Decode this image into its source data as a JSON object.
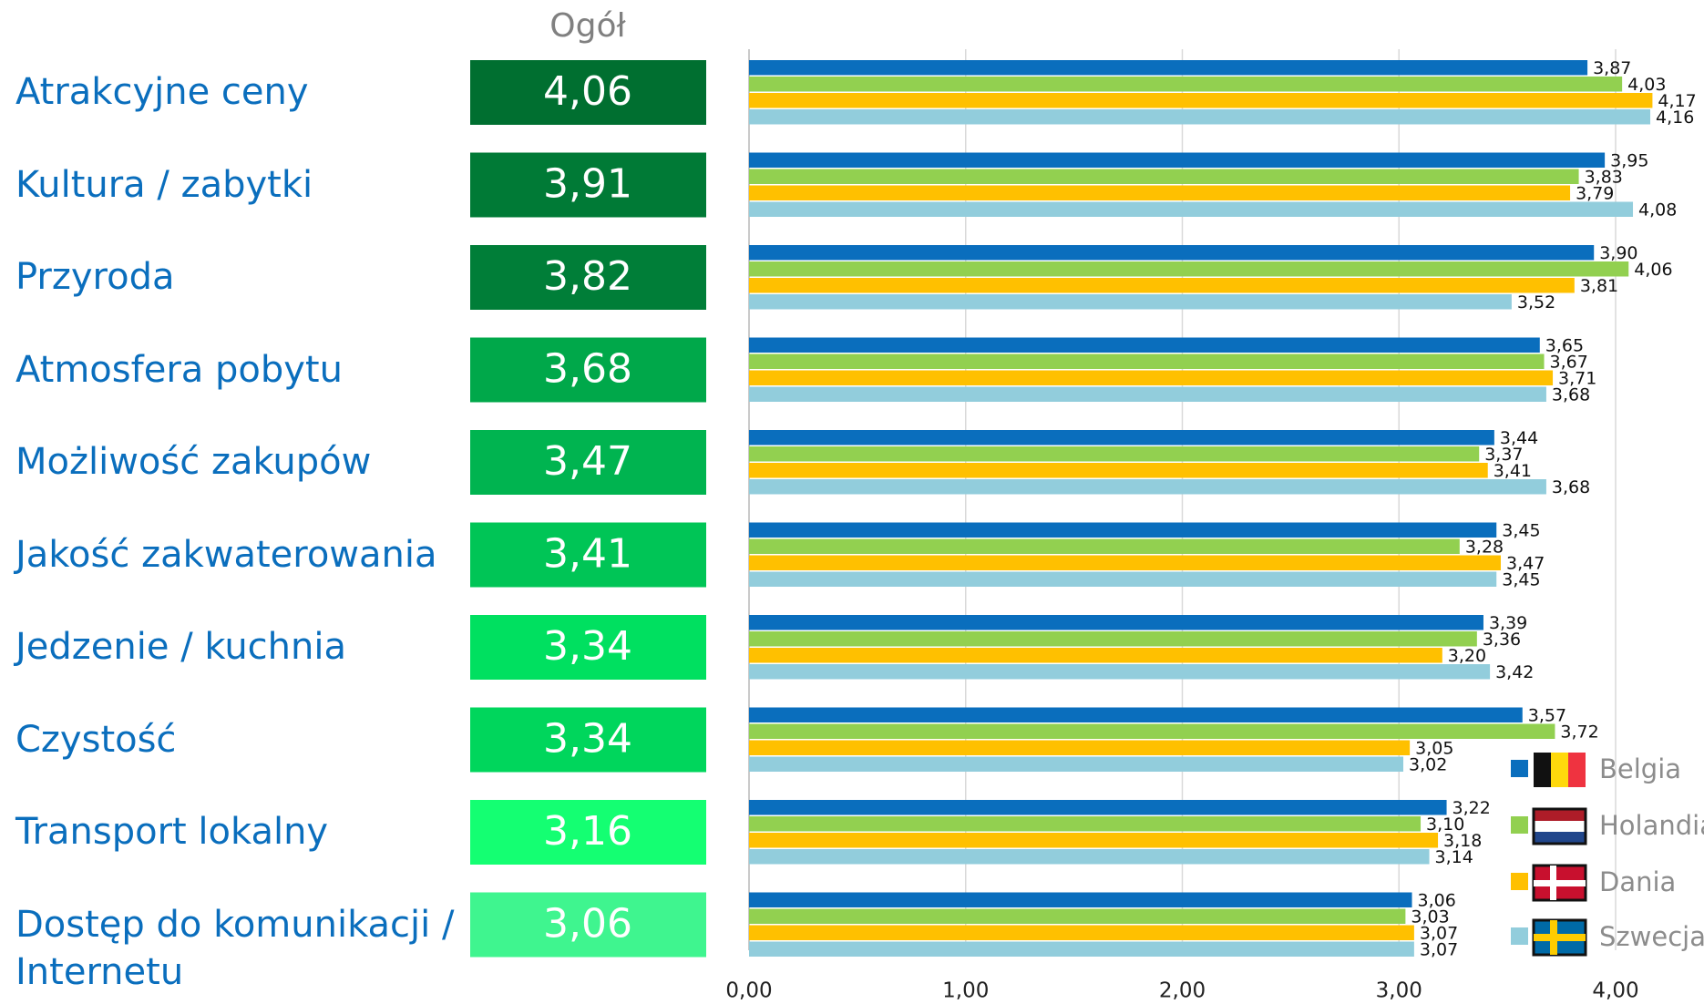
{
  "chart_data": {
    "type": "bar",
    "orientation": "horizontal",
    "summary_header": "Ogół",
    "categories": [
      "Atrakcyjne ceny",
      "Kultura / zabytki",
      "Przyroda",
      "Atmosfera pobytu",
      "Możliwość zakupów",
      "Jakość zakwaterowania",
      "Jedzenie / kuchnia",
      "Czystość",
      "Transport lokalny",
      "Dostęp do komunikacji / Internetu"
    ],
    "summary_values": [
      4.06,
      3.91,
      3.82,
      3.68,
      3.47,
      3.41,
      3.34,
      3.34,
      3.16,
      3.06
    ],
    "summary_value_labels": [
      "4,06",
      "3,91",
      "3,82",
      "3,68",
      "3,47",
      "3,41",
      "3,34",
      "3,34",
      "3,16",
      "3,06"
    ],
    "summary_colors": [
      "#006f30",
      "#007a36",
      "#007e38",
      "#00a84a",
      "#00b450",
      "#00c556",
      "#00e060",
      "#00d65c",
      "#14ff72",
      "#3ff58f"
    ],
    "series": [
      {
        "name": "Belgia",
        "color": "#0a6ebd",
        "values": [
          3.87,
          3.95,
          3.9,
          3.65,
          3.44,
          3.45,
          3.39,
          3.57,
          3.22,
          3.06
        ],
        "value_labels": [
          "3,87",
          "3,95",
          "3,90",
          "3,65",
          "3,44",
          "3,45",
          "3,39",
          "3,57",
          "3,22",
          "3,06"
        ]
      },
      {
        "name": "Holandia",
        "color": "#92d050",
        "values": [
          4.03,
          3.83,
          4.06,
          3.67,
          3.37,
          3.28,
          3.36,
          3.72,
          3.1,
          3.03
        ],
        "value_labels": [
          "4,03",
          "3,83",
          "4,06",
          "3,67",
          "3,37",
          "3,28",
          "3,36",
          "3,72",
          "3,10",
          "3,03"
        ]
      },
      {
        "name": "Dania",
        "color": "#ffc000",
        "values": [
          4.17,
          3.79,
          3.81,
          3.71,
          3.41,
          3.47,
          3.2,
          3.05,
          3.18,
          3.07
        ],
        "value_labels": [
          "4,17",
          "3,79",
          "3,81",
          "3,71",
          "3,41",
          "3,47",
          "3,20",
          "3,05",
          "3,18",
          "3,07"
        ]
      },
      {
        "name": "Szwecja",
        "color": "#92cddc",
        "values": [
          4.16,
          4.08,
          3.52,
          3.68,
          3.68,
          3.45,
          3.42,
          3.02,
          3.14,
          3.07
        ],
        "value_labels": [
          "4,16",
          "4,08",
          "3,52",
          "3,68",
          "3,68",
          "3,45",
          "3,42",
          "3,02",
          "3,14",
          "3,07"
        ]
      }
    ],
    "xlim": [
      0,
      4
    ],
    "xticks": [
      {
        "value": 0,
        "label": "0,00"
      },
      {
        "value": 1,
        "label": "1,00"
      },
      {
        "value": 2,
        "label": "2,00"
      },
      {
        "value": 3,
        "label": "3,00"
      },
      {
        "value": 4,
        "label": "4,00"
      }
    ],
    "grid": true
  }
}
